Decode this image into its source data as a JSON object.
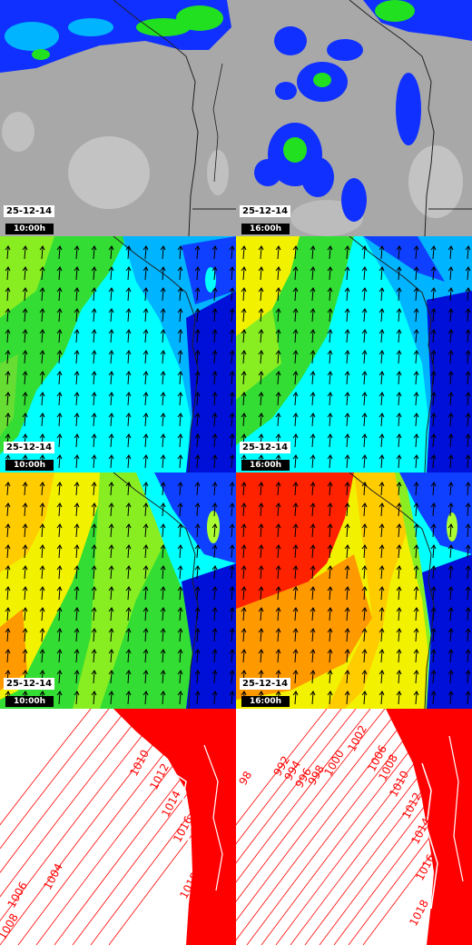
{
  "panels": [
    {
      "id": "precip-10",
      "kind": "precip",
      "date": "25-12-14",
      "time": "10:00h"
    },
    {
      "id": "precip-16",
      "kind": "precip",
      "date": "25-12-14",
      "time": "16:00h"
    },
    {
      "id": "wind-a-10",
      "kind": "wind",
      "date": "25-12-14",
      "time": "10:00h"
    },
    {
      "id": "wind-a-16",
      "kind": "wind",
      "date": "25-12-14",
      "time": "16:00h"
    },
    {
      "id": "wind-b-10",
      "kind": "wind",
      "date": "25-12-14",
      "time": "10:00h"
    },
    {
      "id": "wind-b-16",
      "kind": "wind",
      "date": "25-12-14",
      "time": "16:00h"
    },
    {
      "id": "pressure-10",
      "kind": "pressure",
      "isobar_labels": [
        "1004",
        "1006",
        "1008",
        "1010",
        "1012",
        "1014",
        "1016",
        "1018"
      ]
    },
    {
      "id": "pressure-16",
      "kind": "pressure",
      "isobar_labels": [
        "98",
        "992",
        "994",
        "996",
        "998",
        "1000",
        "1002",
        "1006",
        "1008",
        "1010",
        "1012",
        "1014",
        "1016",
        "1018"
      ]
    }
  ],
  "colors": {
    "land": "#a8a8a8",
    "precip_blue": "#1030ff",
    "precip_green": "#20e020",
    "cyan": "#00ffff",
    "green": "#33dd33",
    "yellow": "#f2f200",
    "orange": "#ff9900",
    "red": "#ff2200",
    "deep_blue": "#0010d8",
    "isobar": "#ff0000"
  }
}
